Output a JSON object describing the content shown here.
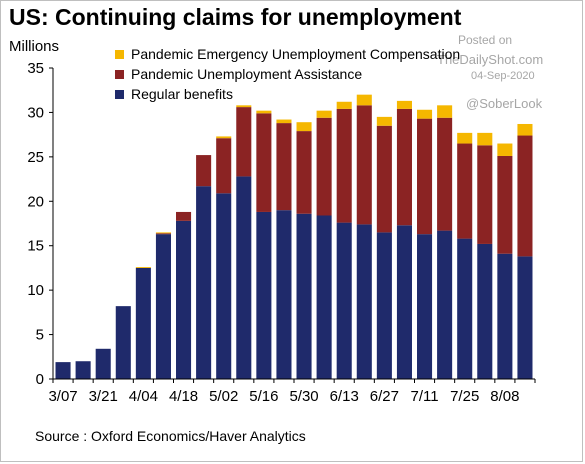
{
  "header": {
    "title": "US: Continuing claims for unemployment",
    "unit": "Millions"
  },
  "watermark": {
    "posted_on": "Posted on",
    "site": "TheDailyShot.com",
    "date": "04-Sep-2020",
    "handle": "@SoberLook"
  },
  "footer": {
    "source": "Source : Oxford Economics/Haver Analytics"
  },
  "chart_data": {
    "type": "bar",
    "stacked": true,
    "title": "US: Continuing claims for unemployment",
    "ylabel": "Millions",
    "xlabel": "",
    "ylim": [
      0,
      35
    ],
    "yticks": [
      0,
      5,
      10,
      15,
      20,
      25,
      30,
      35
    ],
    "grid": false,
    "legend_position": "top-left",
    "categories": [
      "3/07",
      "3/14",
      "3/21",
      "3/28",
      "4/04",
      "4/11",
      "4/18",
      "4/25",
      "5/02",
      "5/09",
      "5/16",
      "5/23",
      "5/30",
      "6/06",
      "6/13",
      "6/20",
      "6/27",
      "7/04",
      "7/11",
      "7/18",
      "7/25",
      "8/01",
      "8/08",
      "8/15"
    ],
    "x_tick_labels": [
      "3/07",
      "3/21",
      "4/04",
      "4/18",
      "5/02",
      "5/16",
      "5/30",
      "6/13",
      "6/27",
      "7/11",
      "7/25",
      "8/08"
    ],
    "series": [
      {
        "name": "Regular benefits",
        "color": "#1f2a6b",
        "values": [
          1.9,
          2.0,
          3.4,
          8.2,
          12.5,
          16.3,
          17.8,
          21.7,
          20.9,
          22.8,
          18.8,
          19.0,
          18.6,
          18.4,
          17.6,
          17.4,
          16.5,
          17.3,
          16.3,
          16.7,
          15.8,
          15.2,
          14.1,
          13.8
        ]
      },
      {
        "name": "Pandemic Unemployment Assistance",
        "color": "#8b2323",
        "values": [
          0.0,
          0.0,
          0.0,
          0.0,
          0.0,
          0.1,
          1.0,
          3.5,
          6.2,
          7.8,
          11.1,
          9.8,
          9.3,
          11.0,
          12.8,
          13.4,
          12.0,
          13.1,
          13.0,
          12.7,
          10.7,
          11.1,
          11.0,
          13.6
        ]
      },
      {
        "name": "Pandemic Emergency Unemployment Compensation",
        "color": "#f5b700",
        "values": [
          0.0,
          0.0,
          0.0,
          0.0,
          0.1,
          0.1,
          0.0,
          0.0,
          0.2,
          0.2,
          0.3,
          0.4,
          1.0,
          0.8,
          0.8,
          1.2,
          1.0,
          0.9,
          1.0,
          1.4,
          1.2,
          1.4,
          1.4,
          1.3
        ]
      }
    ]
  }
}
